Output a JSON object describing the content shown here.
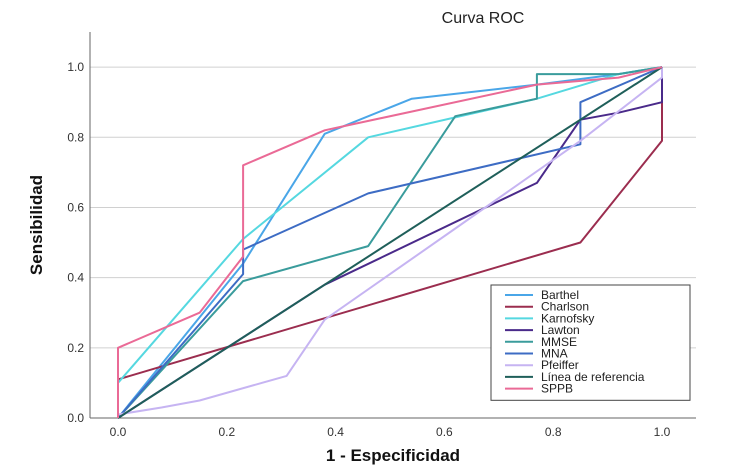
{
  "chart_data": {
    "type": "line",
    "title": "Curva ROC",
    "xlabel": "1 - Especificidad",
    "ylabel": "Sensibilidad",
    "xlim": [
      0,
      1
    ],
    "ylim": [
      0,
      1.1
    ],
    "xticks": [
      "0.0",
      "0.2",
      "0.4",
      "0.6",
      "0.8",
      "1.0"
    ],
    "yticks": [
      "0.0",
      "0.2",
      "0.4",
      "0.6",
      "0.8",
      "1.0"
    ],
    "grid": "horizontal",
    "legend_position": "bottom-right",
    "series": [
      {
        "name": "Barthel",
        "color": "#4aa6e8",
        "points": [
          [
            0,
            0
          ],
          [
            0.23,
            0.44
          ],
          [
            0.38,
            0.81
          ],
          [
            0.54,
            0.91
          ],
          [
            0.77,
            0.95
          ],
          [
            0.92,
            0.98
          ],
          [
            1,
            1
          ]
        ]
      },
      {
        "name": "Charlson",
        "color": "#9b2d4f",
        "points": [
          [
            0,
            0
          ],
          [
            0,
            0.11
          ],
          [
            0.85,
            0.5
          ],
          [
            1,
            0.79
          ],
          [
            1,
            1
          ]
        ]
      },
      {
        "name": "Karnofsky",
        "color": "#55d8e0",
        "points": [
          [
            0,
            0
          ],
          [
            0,
            0.1
          ],
          [
            0.23,
            0.51
          ],
          [
            0.46,
            0.8
          ],
          [
            0.77,
            0.91
          ],
          [
            0.92,
            0.98
          ],
          [
            1,
            1
          ]
        ]
      },
      {
        "name": "Lawton",
        "color": "#4a2a8a",
        "points": [
          [
            0,
            0
          ],
          [
            0.08,
            0.08
          ],
          [
            0.38,
            0.38
          ],
          [
            0.77,
            0.67
          ],
          [
            0.85,
            0.85
          ],
          [
            0.92,
            0.87
          ],
          [
            1,
            0.9
          ],
          [
            1,
            1
          ]
        ]
      },
      {
        "name": "MMSE",
        "color": "#3a9c9c",
        "points": [
          [
            0,
            0
          ],
          [
            0.23,
            0.39
          ],
          [
            0.46,
            0.49
          ],
          [
            0.62,
            0.86
          ],
          [
            0.77,
            0.91
          ],
          [
            0.77,
            0.98
          ],
          [
            0.92,
            0.98
          ],
          [
            1,
            1
          ]
        ]
      },
      {
        "name": "MNA",
        "color": "#3d6cc4",
        "points": [
          [
            0,
            0
          ],
          [
            0.23,
            0.41
          ],
          [
            0.23,
            0.48
          ],
          [
            0.46,
            0.64
          ],
          [
            0.85,
            0.78
          ],
          [
            0.85,
            0.9
          ],
          [
            1,
            1
          ]
        ]
      },
      {
        "name": "Pfeiffer",
        "color": "#c6b4f2",
        "points": [
          [
            0,
            0
          ],
          [
            0,
            0.01
          ],
          [
            0.08,
            0.03
          ],
          [
            0.15,
            0.05
          ],
          [
            0.31,
            0.12
          ],
          [
            0.38,
            0.28
          ],
          [
            0.62,
            0.54
          ],
          [
            0.85,
            0.79
          ],
          [
            1,
            0.97
          ],
          [
            1,
            1
          ]
        ]
      },
      {
        "name": "Línea de referencia",
        "color": "#1f5f5a",
        "points": [
          [
            0,
            0
          ],
          [
            1,
            1
          ]
        ]
      },
      {
        "name": "SPPB",
        "color": "#ea6a96",
        "points": [
          [
            0,
            0
          ],
          [
            0,
            0.2
          ],
          [
            0.15,
            0.3
          ],
          [
            0.23,
            0.46
          ],
          [
            0.23,
            0.72
          ],
          [
            0.38,
            0.82
          ],
          [
            0.77,
            0.95
          ],
          [
            0.92,
            0.97
          ],
          [
            1,
            1
          ]
        ]
      }
    ]
  }
}
